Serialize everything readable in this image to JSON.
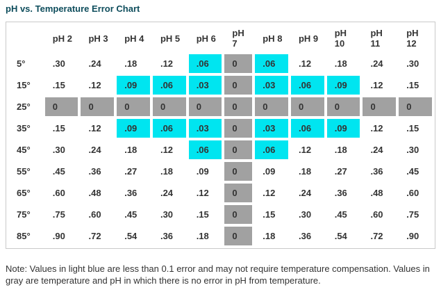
{
  "title": "pH vs. Temperature Error Chart",
  "note": "Note: Values in light blue are less than 0.1 error and may not require temperature compensation. Values in gray are temperature and pH in which there is no error in pH from temperature.",
  "colors": {
    "highlight_light_blue": "#00e5f0",
    "zero_gray": "#a1a1a1",
    "title_teal": "#0e4d5c",
    "table_border": "#c9c9c9",
    "cell_text": "#333333"
  },
  "chart_data": {
    "type": "table",
    "title": "pH vs. Temperature Error Chart",
    "columns": [
      "",
      "pH 2",
      "pH 3",
      "pH 4",
      "pH 5",
      "pH 6",
      "pH\n7",
      "pH 8",
      "pH 9",
      "pH\n10",
      "pH\n11",
      "pH\n12"
    ],
    "row_axis": "temperature",
    "rows": [
      {
        "label": "5°",
        "values": [
          ".30",
          ".24",
          ".18",
          ".12",
          ".06",
          "0",
          ".06",
          ".12",
          ".18",
          ".24",
          ".30"
        ],
        "styles": [
          "w",
          "w",
          "w",
          "w",
          "b",
          "g",
          "b",
          "w",
          "w",
          "w",
          "w"
        ]
      },
      {
        "label": "15°",
        "values": [
          ".15",
          ".12",
          ".09",
          ".06",
          ".03",
          "0",
          ".03",
          ".06",
          ".09",
          ".12",
          ".15"
        ],
        "styles": [
          "w",
          "w",
          "b",
          "b",
          "b",
          "g",
          "b",
          "b",
          "b",
          "w",
          "w"
        ]
      },
      {
        "label": "25°",
        "values": [
          "0",
          "0",
          "0",
          "0",
          "0",
          "0",
          "0",
          "0",
          "0",
          "0",
          "0"
        ],
        "styles": [
          "g",
          "g",
          "g",
          "g",
          "g",
          "g",
          "g",
          "g",
          "g",
          "g",
          "g"
        ]
      },
      {
        "label": "35°",
        "values": [
          ".15",
          ".12",
          ".09",
          ".06",
          ".03",
          "0",
          ".03",
          ".06",
          ".09",
          ".12",
          ".15"
        ],
        "styles": [
          "w",
          "w",
          "b",
          "b",
          "b",
          "g",
          "b",
          "b",
          "b",
          "w",
          "w"
        ]
      },
      {
        "label": "45°",
        "values": [
          ".30",
          ".24",
          ".18",
          ".12",
          ".06",
          "0",
          ".06",
          ".12",
          ".18",
          ".24",
          ".30"
        ],
        "styles": [
          "w",
          "w",
          "w",
          "w",
          "b",
          "g",
          "b",
          "w",
          "w",
          "w",
          "w"
        ]
      },
      {
        "label": "55°",
        "values": [
          ".45",
          ".36",
          ".27",
          ".18",
          ".09",
          "0",
          ".09",
          ".18",
          ".27",
          ".36",
          ".45"
        ],
        "styles": [
          "w",
          "w",
          "w",
          "w",
          "w",
          "g",
          "w",
          "w",
          "w",
          "w",
          "w"
        ]
      },
      {
        "label": "65°",
        "values": [
          ".60",
          ".48",
          ".36",
          ".24",
          ".12",
          "0",
          ".12",
          ".24",
          ".36",
          ".48",
          ".60"
        ],
        "styles": [
          "w",
          "w",
          "w",
          "w",
          "w",
          "g",
          "w",
          "w",
          "w",
          "w",
          "w"
        ]
      },
      {
        "label": "75°",
        "values": [
          ".75",
          ".60",
          ".45",
          ".30",
          ".15",
          "0",
          ".15",
          ".30",
          ".45",
          ".60",
          ".75"
        ],
        "styles": [
          "w",
          "w",
          "w",
          "w",
          "w",
          "g",
          "w",
          "w",
          "w",
          "w",
          "w"
        ]
      },
      {
        "label": "85°",
        "values": [
          ".90",
          ".72",
          ".54",
          ".36",
          ".18",
          "0",
          ".18",
          ".36",
          ".54",
          ".72",
          ".90"
        ],
        "styles": [
          "w",
          "w",
          "w",
          "w",
          "w",
          "g",
          "w",
          "w",
          "w",
          "w",
          "w"
        ]
      }
    ],
    "style_legend": {
      "b": "light blue highlight",
      "g": "gray zero cell",
      "w": "plain white cell"
    }
  }
}
